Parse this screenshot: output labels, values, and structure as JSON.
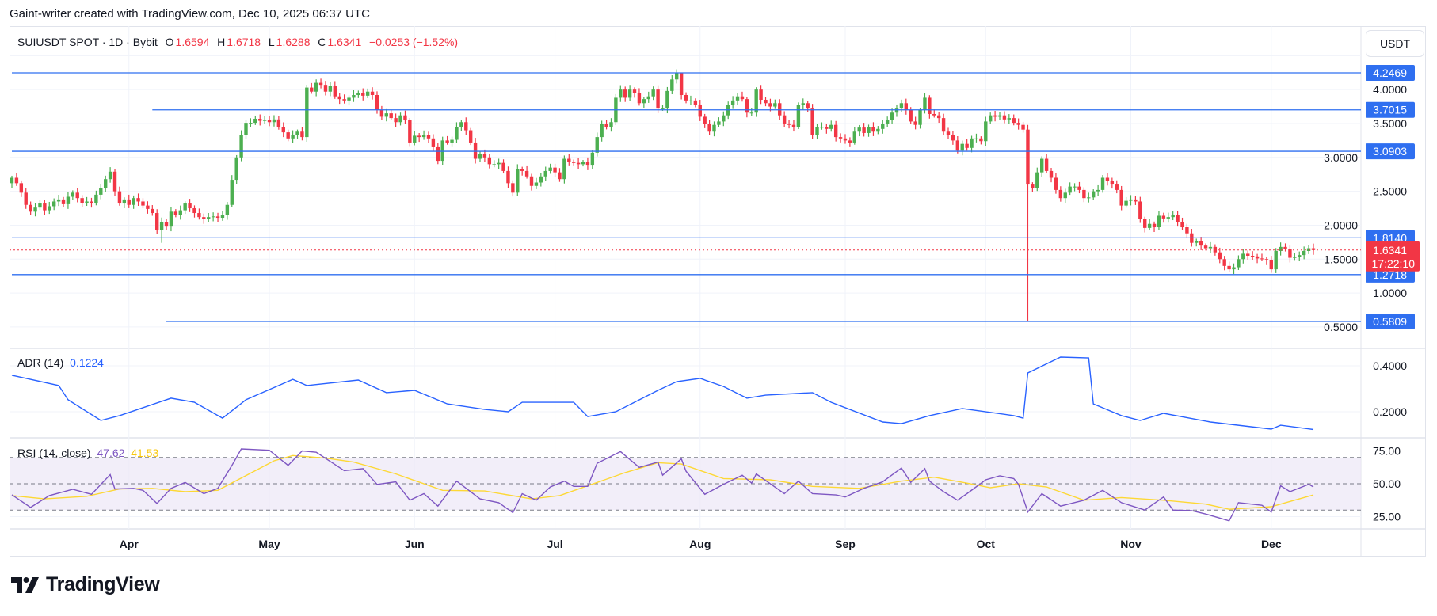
{
  "credit": "Gaint-writer created with TradingView.com, Dec 10, 2025 06:37 UTC",
  "legend": {
    "symbol": "SUIUSDT SPOT · 1D · Bybit",
    "open_label": "O",
    "open": "1.6594",
    "high_label": "H",
    "high": "1.6718",
    "low_label": "L",
    "low": "1.6288",
    "close_label": "C",
    "close": "1.6341",
    "change": "−0.0253 (−1.52%)"
  },
  "currency_button": "USDT",
  "colors": {
    "up": "#4caf50",
    "down": "#f23645",
    "level": "#2f6ff0",
    "adr": "#2962ff",
    "rsi": "#7e57c2",
    "rsi_ma": "#fdd835",
    "rsi_band": "#ede7f6"
  },
  "price_axis": {
    "ticks": [
      "4.0000",
      "3.5000",
      "3.0000",
      "2.5000",
      "2.0000",
      "1.5000",
      "1.0000",
      "0.5000"
    ],
    "range": [
      0.45,
      4.55
    ]
  },
  "levels": [
    {
      "value": 4.2469,
      "label": "4.2469",
      "from": "2025-03-07"
    },
    {
      "value": 3.7015,
      "label": "3.7015",
      "from": "2025-04-06"
    },
    {
      "value": 3.0903,
      "label": "3.0903",
      "from": "2025-03-07"
    },
    {
      "value": 1.814,
      "label": "1.8140",
      "from": "2025-03-07"
    },
    {
      "value": 1.2718,
      "label": "1.2718",
      "from": "2025-03-07"
    },
    {
      "value": 0.5809,
      "label": "0.5809",
      "from": "2025-04-09"
    }
  ],
  "current_price": {
    "value": 1.6341,
    "label": "1.6341",
    "countdown": "17:22:10"
  },
  "time_axis": {
    "labels": [
      {
        "label": "Apr",
        "date": "2025-04-01"
      },
      {
        "label": "May",
        "date": "2025-05-01"
      },
      {
        "label": "Jun",
        "date": "2025-06-01"
      },
      {
        "label": "Jul",
        "date": "2025-07-01"
      },
      {
        "label": "Aug",
        "date": "2025-08-01"
      },
      {
        "label": "Sep",
        "date": "2025-09-01"
      },
      {
        "label": "Oct",
        "date": "2025-10-01"
      },
      {
        "label": "Nov",
        "date": "2025-11-01"
      },
      {
        "label": "Dec",
        "date": "2025-12-01"
      }
    ]
  },
  "chart_data": {
    "type": "candlestick",
    "date_range": [
      "2025-03-07",
      "2025-12-10"
    ],
    "first_open": 2.62,
    "closes": [
      2.7,
      2.62,
      2.48,
      2.3,
      2.2,
      2.26,
      2.32,
      2.22,
      2.28,
      2.35,
      2.38,
      2.31,
      2.42,
      2.48,
      2.4,
      2.33,
      2.35,
      2.33,
      2.45,
      2.55,
      2.68,
      2.79,
      2.5,
      2.32,
      2.38,
      2.3,
      2.4,
      2.35,
      2.29,
      2.24,
      2.18,
      1.93,
      2.05,
      1.98,
      2.2,
      2.15,
      2.22,
      2.32,
      2.25,
      2.18,
      2.12,
      2.09,
      2.12,
      2.13,
      2.11,
      2.15,
      2.3,
      2.67,
      3.0,
      3.33,
      3.51,
      3.51,
      3.57,
      3.54,
      3.55,
      3.52,
      3.56,
      3.45,
      3.37,
      3.28,
      3.33,
      3.38,
      3.3,
      4.03,
      3.97,
      4.1,
      4.07,
      3.97,
      4.06,
      3.9,
      3.86,
      3.84,
      3.88,
      3.92,
      3.95,
      3.91,
      3.97,
      3.92,
      3.7,
      3.6,
      3.65,
      3.58,
      3.52,
      3.62,
      3.55,
      3.22,
      3.32,
      3.3,
      3.33,
      3.28,
      3.15,
      2.95,
      3.25,
      3.22,
      3.26,
      3.45,
      3.52,
      3.4,
      3.22,
      2.98,
      3.05,
      3.0,
      2.9,
      2.9,
      2.92,
      2.8,
      2.62,
      2.48,
      2.83,
      2.8,
      2.72,
      2.58,
      2.63,
      2.72,
      2.8,
      2.85,
      2.78,
      2.68,
      2.98,
      2.93,
      2.92,
      2.9,
      2.93,
      2.88,
      3.07,
      3.3,
      3.49,
      3.45,
      3.52,
      3.88,
      4.0,
      3.88,
      4.0,
      3.95,
      3.8,
      3.86,
      3.9,
      4.0,
      3.72,
      3.72,
      3.98,
      4.15,
      4.25,
      3.92,
      3.84,
      3.84,
      3.78,
      3.6,
      3.49,
      3.38,
      3.48,
      3.53,
      3.62,
      3.77,
      3.84,
      3.9,
      3.86,
      3.66,
      3.66,
      4.0,
      3.85,
      3.8,
      3.75,
      3.8,
      3.62,
      3.5,
      3.48,
      3.45,
      3.77,
      3.8,
      3.72,
      3.33,
      3.45,
      3.45,
      3.42,
      3.48,
      3.3,
      3.28,
      3.25,
      3.22,
      3.38,
      3.44,
      3.36,
      3.45,
      3.38,
      3.42,
      3.49,
      3.55,
      3.66,
      3.72,
      3.8,
      3.7,
      3.53,
      3.48,
      3.7,
      3.88,
      3.64,
      3.62,
      3.58,
      3.38,
      3.33,
      3.25,
      3.1,
      3.2,
      3.14,
      3.28,
      3.28,
      3.24,
      3.53,
      3.62,
      3.6,
      3.62,
      3.56,
      3.58,
      3.51,
      3.48,
      3.41,
      2.6,
      2.55,
      2.78,
      2.98,
      2.8,
      2.7,
      2.52,
      2.4,
      2.48,
      2.57,
      2.57,
      2.52,
      2.4,
      2.41,
      2.5,
      2.52,
      2.7,
      2.65,
      2.6,
      2.52,
      2.29,
      2.36,
      2.38,
      2.35,
      2.09,
      1.96,
      2.02,
      1.97,
      2.14,
      2.1,
      2.12,
      2.15,
      2.05,
      1.97,
      1.88,
      1.74,
      1.76,
      1.7,
      1.66,
      1.68,
      1.6,
      1.5,
      1.4,
      1.35,
      1.38,
      1.5,
      1.58,
      1.55,
      1.54,
      1.51,
      1.5,
      1.48,
      1.35,
      1.62,
      1.68,
      1.65,
      1.52,
      1.53,
      1.56,
      1.62,
      1.66,
      1.6341
    ],
    "notable_wicks": [
      {
        "date": "2025-10-10",
        "low": 0.5809
      },
      {
        "date": "2025-07-28",
        "high": 4.2469
      },
      {
        "date": "2025-04-08",
        "low": 1.74
      }
    ],
    "indicators": {
      "adr": {
        "label": "ADR (14)",
        "value": "0.1224",
        "ticks": [
          "0.4000",
          "0.2000"
        ],
        "points": [
          [
            "03-07",
            0.359
          ],
          [
            "03-17",
            0.314
          ],
          [
            "03-19",
            0.252
          ],
          [
            "03-26",
            0.162
          ],
          [
            "03-30",
            0.183
          ],
          [
            "04-10",
            0.259
          ],
          [
            "04-15",
            0.241
          ],
          [
            "04-21",
            0.172
          ],
          [
            "04-26",
            0.252
          ],
          [
            "05-06",
            0.341
          ],
          [
            "05-09",
            0.314
          ],
          [
            "05-20",
            0.338
          ],
          [
            "05-26",
            0.283
          ],
          [
            "06-01",
            0.293
          ],
          [
            "06-08",
            0.234
          ],
          [
            "06-16",
            0.21
          ],
          [
            "06-21",
            0.2
          ],
          [
            "06-24",
            0.241
          ],
          [
            "07-05",
            0.241
          ],
          [
            "07-08",
            0.179
          ],
          [
            "07-14",
            0.2
          ],
          [
            "07-23",
            0.293
          ],
          [
            "07-27",
            0.331
          ],
          [
            "08-01",
            0.345
          ],
          [
            "08-06",
            0.31
          ],
          [
            "08-11",
            0.259
          ],
          [
            "08-15",
            0.272
          ],
          [
            "08-25",
            0.283
          ],
          [
            "08-29",
            0.241
          ],
          [
            "09-09",
            0.155
          ],
          [
            "09-13",
            0.148
          ],
          [
            "09-19",
            0.183
          ],
          [
            "09-26",
            0.214
          ],
          [
            "10-07",
            0.183
          ],
          [
            "10-09",
            0.172
          ],
          [
            "10-10",
            0.369
          ],
          [
            "10-17",
            0.438
          ],
          [
            "10-23",
            0.434
          ],
          [
            "10-24",
            0.234
          ],
          [
            "10-30",
            0.183
          ],
          [
            "11-03",
            0.162
          ],
          [
            "11-08",
            0.193
          ],
          [
            "11-18",
            0.155
          ],
          [
            "12-01",
            0.124
          ],
          [
            "12-03",
            0.141
          ],
          [
            "12-10",
            0.1224
          ]
        ]
      },
      "rsi": {
        "label": "RSI (14, close)",
        "value": "47.62",
        "ma_value": "41.53",
        "ticks": [
          "75.00",
          "50.00",
          "25.00"
        ],
        "bands": [
          70,
          50,
          30
        ],
        "points": [
          [
            "03-07",
            41.6
          ],
          [
            "03-11",
            32
          ],
          [
            "03-15",
            41
          ],
          [
            "03-20",
            45.8
          ],
          [
            "03-24",
            42
          ],
          [
            "03-28",
            57
          ],
          [
            "03-29",
            46
          ],
          [
            "04-02",
            46.5
          ],
          [
            "04-04",
            45
          ],
          [
            "04-07",
            35
          ],
          [
            "04-10",
            46.5
          ],
          [
            "04-13",
            51
          ],
          [
            "04-17",
            42.5
          ],
          [
            "04-20",
            46.5
          ],
          [
            "04-23",
            64
          ],
          [
            "04-25",
            76.5
          ],
          [
            "05-01",
            75.5
          ],
          [
            "05-05",
            64
          ],
          [
            "05-08",
            75
          ],
          [
            "05-11",
            74
          ],
          [
            "05-17",
            60
          ],
          [
            "05-21",
            61.5
          ],
          [
            "05-24",
            49.5
          ],
          [
            "05-28",
            51.5
          ],
          [
            "05-31",
            37.5
          ],
          [
            "06-03",
            42.5
          ],
          [
            "06-06",
            33
          ],
          [
            "06-10",
            52
          ],
          [
            "06-15",
            38.5
          ],
          [
            "06-19",
            35.6
          ],
          [
            "06-22",
            28
          ],
          [
            "06-24",
            42.5
          ],
          [
            "06-27",
            37.5
          ],
          [
            "06-30",
            47.5
          ],
          [
            "07-03",
            52
          ],
          [
            "07-05",
            48
          ],
          [
            "07-08",
            48
          ],
          [
            "07-10",
            65.6
          ],
          [
            "07-15",
            74.5
          ],
          [
            "07-19",
            62.5
          ],
          [
            "07-23",
            66.5
          ],
          [
            "07-24",
            56.5
          ],
          [
            "07-28",
            69
          ],
          [
            "07-29",
            59.6
          ],
          [
            "08-02",
            42
          ],
          [
            "08-06",
            49.6
          ],
          [
            "08-10",
            56.5
          ],
          [
            "08-12",
            50.5
          ],
          [
            "08-13",
            57.5
          ],
          [
            "08-19",
            42.5
          ],
          [
            "08-22",
            52
          ],
          [
            "08-25",
            42.5
          ],
          [
            "08-30",
            41.5
          ],
          [
            "09-01",
            40
          ],
          [
            "09-05",
            46.5
          ],
          [
            "09-09",
            51.5
          ],
          [
            "09-13",
            62
          ],
          [
            "09-15",
            51
          ],
          [
            "09-18",
            61.5
          ],
          [
            "09-19",
            52
          ],
          [
            "09-22",
            44
          ],
          [
            "09-25",
            37.5
          ],
          [
            "09-27",
            42.5
          ],
          [
            "10-01",
            53
          ],
          [
            "10-04",
            56
          ],
          [
            "10-07",
            54
          ],
          [
            "10-08",
            49.6
          ],
          [
            "10-10",
            28.5
          ],
          [
            "10-13",
            42.5
          ],
          [
            "10-17",
            33
          ],
          [
            "10-22",
            37.5
          ],
          [
            "10-26",
            45
          ],
          [
            "10-30",
            35.6
          ],
          [
            "11-04",
            30
          ],
          [
            "11-08",
            40
          ],
          [
            "11-10",
            30
          ],
          [
            "11-14",
            29.6
          ],
          [
            "11-17",
            27
          ],
          [
            "11-22",
            21.8
          ],
          [
            "11-24",
            35.6
          ],
          [
            "11-29",
            33.6
          ],
          [
            "12-01",
            28.5
          ],
          [
            "12-03",
            48.5
          ],
          [
            "12-05",
            44
          ],
          [
            "12-09",
            49.6
          ],
          [
            "12-10",
            47.62
          ]
        ],
        "ma_points": [
          [
            "03-07",
            41
          ],
          [
            "03-14",
            38.5
          ],
          [
            "03-23",
            40.5
          ],
          [
            "03-30",
            46
          ],
          [
            "04-06",
            46.5
          ],
          [
            "04-13",
            44
          ],
          [
            "04-20",
            45
          ],
          [
            "05-02",
            67.5
          ],
          [
            "05-06",
            71.5
          ],
          [
            "05-13",
            69.5
          ],
          [
            "05-19",
            66.5
          ],
          [
            "05-28",
            57.5
          ],
          [
            "06-07",
            45
          ],
          [
            "06-16",
            44.5
          ],
          [
            "06-26",
            38.5
          ],
          [
            "07-02",
            41
          ],
          [
            "07-16",
            58.5
          ],
          [
            "07-23",
            66
          ],
          [
            "07-28",
            65
          ],
          [
            "08-06",
            54
          ],
          [
            "08-16",
            53
          ],
          [
            "08-25",
            48
          ],
          [
            "09-04",
            46.5
          ],
          [
            "09-13",
            52
          ],
          [
            "09-20",
            55
          ],
          [
            "09-27",
            50.5
          ],
          [
            "10-02",
            47
          ],
          [
            "10-08",
            50
          ],
          [
            "10-14",
            47.6
          ],
          [
            "10-22",
            37.5
          ],
          [
            "10-30",
            39.5
          ],
          [
            "11-08",
            37.5
          ],
          [
            "11-17",
            34.5
          ],
          [
            "11-22",
            30.6
          ],
          [
            "12-01",
            32.5
          ],
          [
            "12-10",
            41.53
          ]
        ]
      }
    }
  },
  "brand": "TradingView"
}
